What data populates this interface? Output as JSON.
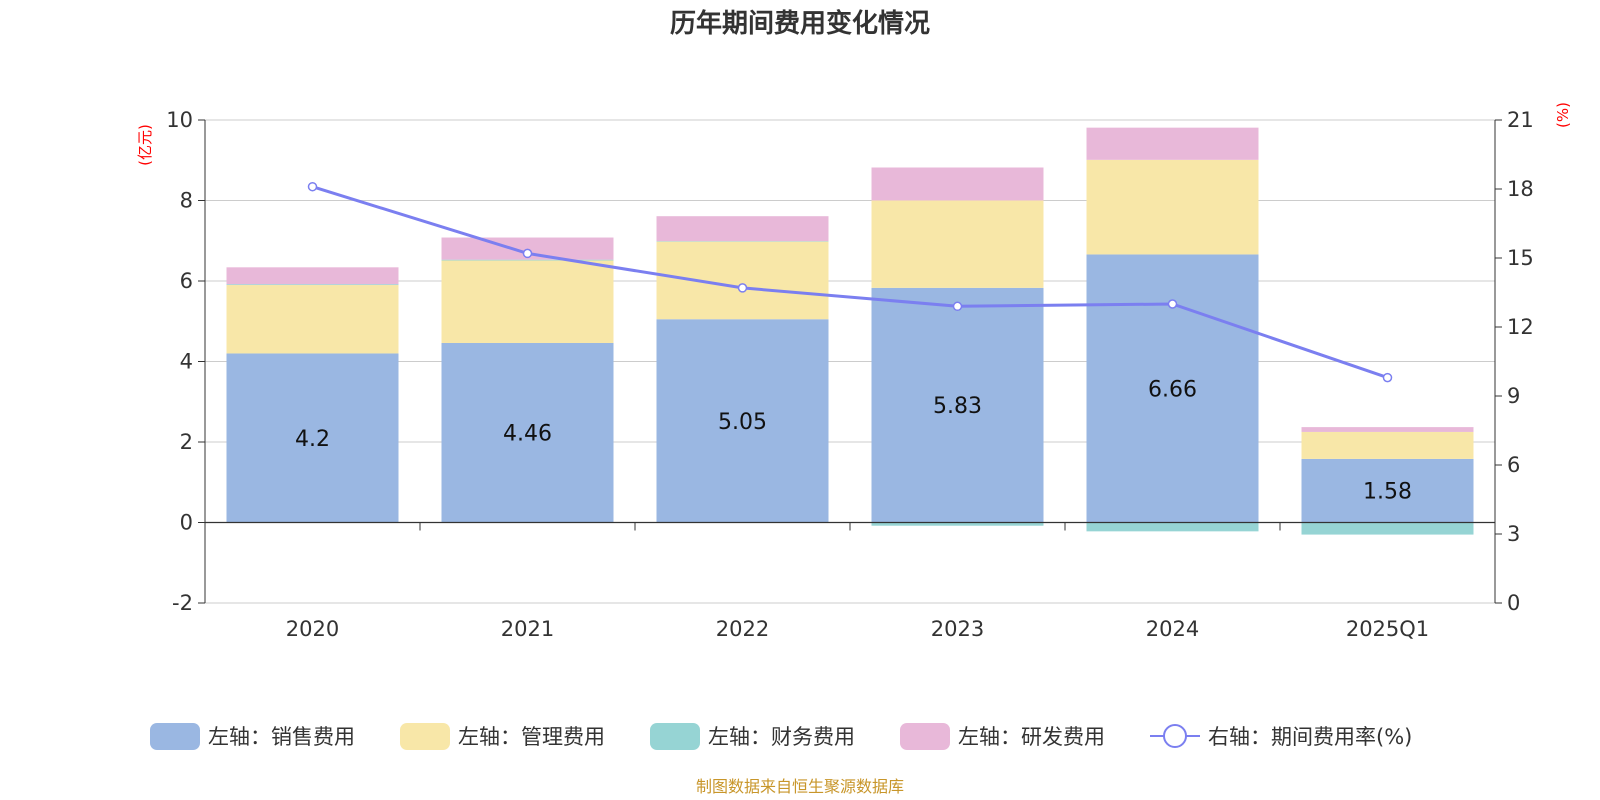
{
  "chart_data": {
    "type": "bar",
    "stacked": true,
    "title": "历年期间费用变化情况",
    "categories": [
      "2020",
      "2021",
      "2022",
      "2023",
      "2024",
      "2025Q1"
    ],
    "left_axis": {
      "unit": "(亿元)",
      "range": [
        -2,
        10
      ],
      "ticks": [
        "-2",
        "0",
        "2",
        "4",
        "6",
        "8",
        "10"
      ]
    },
    "right_axis": {
      "unit": "(%)",
      "range": [
        0,
        21
      ],
      "ticks": [
        "0",
        "3",
        "6",
        "9",
        "12",
        "15",
        "18",
        "21"
      ]
    },
    "series": [
      {
        "name": "左轴：销售费用",
        "axis": "left",
        "color": "#9ab7e2",
        "values": [
          4.2,
          4.46,
          5.05,
          5.83,
          6.66,
          1.58
        ],
        "labels": [
          "4.2",
          "4.46",
          "5.05",
          "5.83",
          "6.66",
          "1.58"
        ]
      },
      {
        "name": "左轴：管理费用",
        "axis": "left",
        "color": "#f8e7a8",
        "values": [
          1.7,
          2.05,
          1.93,
          2.17,
          2.35,
          0.67
        ]
      },
      {
        "name": "左轴：财务费用",
        "axis": "left",
        "color": "#96d4d4",
        "values": [
          0.02,
          0.02,
          0.01,
          -0.08,
          -0.22,
          -0.3
        ]
      },
      {
        "name": "左轴：研发费用",
        "axis": "left",
        "color": "#e8b8d9",
        "values": [
          0.42,
          0.55,
          0.62,
          0.82,
          0.8,
          0.12
        ]
      }
    ],
    "line_series": {
      "name": "右轴：期间费用率(%)",
      "axis": "right",
      "color": "#7b7ff0",
      "values": [
        18.1,
        15.2,
        13.7,
        12.9,
        13.0,
        9.8
      ]
    },
    "grid": true,
    "legend_position": "bottom"
  },
  "source_note": "制图数据来自恒生聚源数据库"
}
